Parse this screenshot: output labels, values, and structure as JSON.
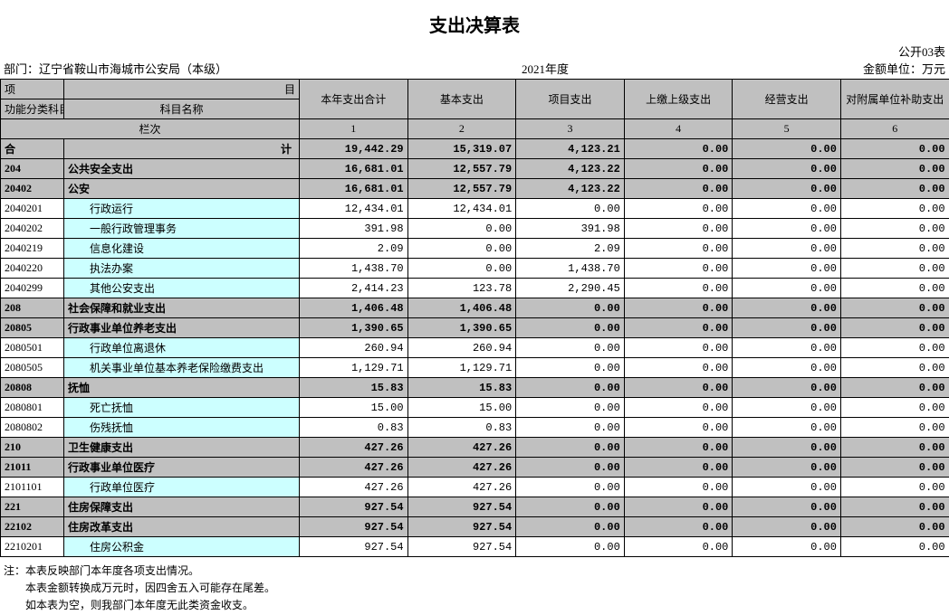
{
  "title": "支出决算表",
  "form_code": "公开03表",
  "department_label": "部门：",
  "department": "辽宁省鞍山市海城市公安局（本级）",
  "year": "2021年度",
  "unit": "金额单位：万元",
  "header": {
    "item_left": "项",
    "item_right": "目",
    "code_label": "功能分类科目编码",
    "name_label": "科目名称",
    "cols": [
      "本年支出合计",
      "基本支出",
      "项目支出",
      "上缴上级支出",
      "经营支出",
      "对附属单位补助支出"
    ],
    "lanci": "栏次",
    "col_nums": [
      "1",
      "2",
      "3",
      "4",
      "5",
      "6"
    ]
  },
  "total_row": {
    "label_left": "合",
    "label_right": "计",
    "vals": [
      "19,442.29",
      "15,319.07",
      "4,123.21",
      "0.00",
      "0.00",
      "0.00"
    ]
  },
  "rows": [
    {
      "type": "group",
      "code": "204",
      "name": "公共安全支出",
      "vals": [
        "16,681.01",
        "12,557.79",
        "4,123.22",
        "0.00",
        "0.00",
        "0.00"
      ]
    },
    {
      "type": "group",
      "code": "20402",
      "name": "公安",
      "vals": [
        "16,681.01",
        "12,557.79",
        "4,123.22",
        "0.00",
        "0.00",
        "0.00"
      ]
    },
    {
      "type": "detail",
      "code": "2040201",
      "name": "行政运行",
      "vals": [
        "12,434.01",
        "12,434.01",
        "0.00",
        "0.00",
        "0.00",
        "0.00"
      ]
    },
    {
      "type": "detail",
      "code": "2040202",
      "name": "一般行政管理事务",
      "vals": [
        "391.98",
        "0.00",
        "391.98",
        "0.00",
        "0.00",
        "0.00"
      ]
    },
    {
      "type": "detail",
      "code": "2040219",
      "name": "信息化建设",
      "vals": [
        "2.09",
        "0.00",
        "2.09",
        "0.00",
        "0.00",
        "0.00"
      ]
    },
    {
      "type": "detail",
      "code": "2040220",
      "name": "执法办案",
      "vals": [
        "1,438.70",
        "0.00",
        "1,438.70",
        "0.00",
        "0.00",
        "0.00"
      ]
    },
    {
      "type": "detail",
      "code": "2040299",
      "name": "其他公安支出",
      "vals": [
        "2,414.23",
        "123.78",
        "2,290.45",
        "0.00",
        "0.00",
        "0.00"
      ]
    },
    {
      "type": "group",
      "code": "208",
      "name": "社会保障和就业支出",
      "vals": [
        "1,406.48",
        "1,406.48",
        "0.00",
        "0.00",
        "0.00",
        "0.00"
      ]
    },
    {
      "type": "group",
      "code": "20805",
      "name": "行政事业单位养老支出",
      "vals": [
        "1,390.65",
        "1,390.65",
        "0.00",
        "0.00",
        "0.00",
        "0.00"
      ]
    },
    {
      "type": "detail",
      "code": "2080501",
      "name": "行政单位离退休",
      "vals": [
        "260.94",
        "260.94",
        "0.00",
        "0.00",
        "0.00",
        "0.00"
      ]
    },
    {
      "type": "detail",
      "code": "2080505",
      "name": "机关事业单位基本养老保险缴费支出",
      "vals": [
        "1,129.71",
        "1,129.71",
        "0.00",
        "0.00",
        "0.00",
        "0.00"
      ]
    },
    {
      "type": "group",
      "code": "20808",
      "name": "抚恤",
      "vals": [
        "15.83",
        "15.83",
        "0.00",
        "0.00",
        "0.00",
        "0.00"
      ]
    },
    {
      "type": "detail",
      "code": "2080801",
      "name": "死亡抚恤",
      "vals": [
        "15.00",
        "15.00",
        "0.00",
        "0.00",
        "0.00",
        "0.00"
      ]
    },
    {
      "type": "detail",
      "code": "2080802",
      "name": "伤残抚恤",
      "vals": [
        "0.83",
        "0.83",
        "0.00",
        "0.00",
        "0.00",
        "0.00"
      ]
    },
    {
      "type": "group",
      "code": "210",
      "name": "卫生健康支出",
      "vals": [
        "427.26",
        "427.26",
        "0.00",
        "0.00",
        "0.00",
        "0.00"
      ]
    },
    {
      "type": "group",
      "code": "21011",
      "name": "行政事业单位医疗",
      "vals": [
        "427.26",
        "427.26",
        "0.00",
        "0.00",
        "0.00",
        "0.00"
      ]
    },
    {
      "type": "detail",
      "code": "2101101",
      "name": "行政单位医疗",
      "vals": [
        "427.26",
        "427.26",
        "0.00",
        "0.00",
        "0.00",
        "0.00"
      ]
    },
    {
      "type": "group",
      "code": "221",
      "name": "住房保障支出",
      "vals": [
        "927.54",
        "927.54",
        "0.00",
        "0.00",
        "0.00",
        "0.00"
      ]
    },
    {
      "type": "group",
      "code": "22102",
      "name": "住房改革支出",
      "vals": [
        "927.54",
        "927.54",
        "0.00",
        "0.00",
        "0.00",
        "0.00"
      ]
    },
    {
      "type": "detail",
      "code": "2210201",
      "name": "住房公积金",
      "vals": [
        "927.54",
        "927.54",
        "0.00",
        "0.00",
        "0.00",
        "0.00"
      ]
    }
  ],
  "notes": [
    "注：本表反映部门本年度各项支出情况。",
    "本表金额转换成万元时，因四舍五入可能存在尾差。",
    "如本表为空，则我部门本年度无此类资金收支。"
  ],
  "colors": {
    "header_bg": "#c0c0c0",
    "group_bg": "#c0c0c0",
    "detail_name_bg": "#ccffff",
    "border": "#000000",
    "text": "#000000"
  },
  "typography": {
    "title_fontsize": 20,
    "body_fontsize": 12
  }
}
